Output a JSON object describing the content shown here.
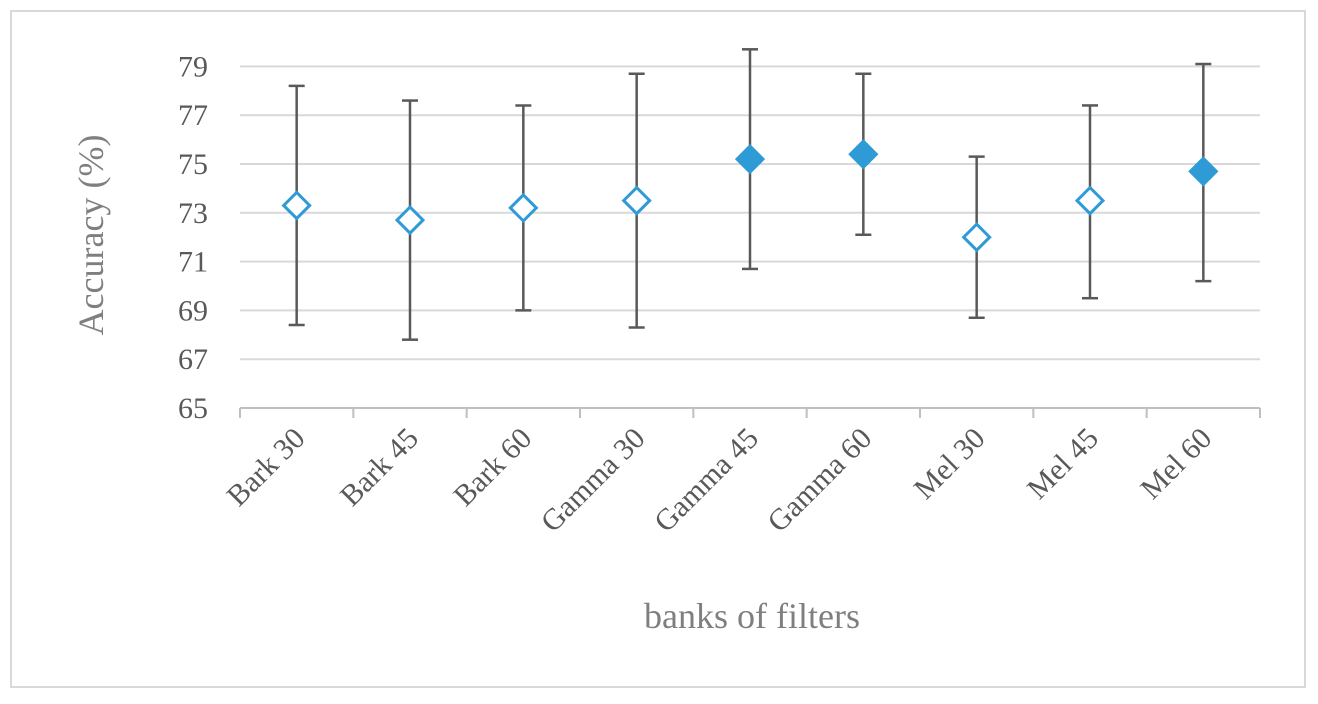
{
  "chart_data": {
    "type": "scatter",
    "title": "",
    "xlabel": "banks of filters",
    "ylabel": "Accuracy (%)",
    "ylim": [
      65,
      80
    ],
    "yticks": [
      65,
      67,
      69,
      71,
      73,
      75,
      77,
      79
    ],
    "grid": "horizontal",
    "categories": [
      "Bark 30",
      "Bark 45",
      "Bark 60",
      "Gamma 30",
      "Gamma 45",
      "Gamma 60",
      "Mel 30",
      "Mel 45",
      "Mel 60"
    ],
    "values": [
      73.3,
      72.7,
      73.2,
      73.5,
      75.2,
      75.4,
      72.0,
      73.5,
      74.7
    ],
    "error_low": [
      68.4,
      67.8,
      69.0,
      68.3,
      70.7,
      72.1,
      68.7,
      69.5,
      70.2
    ],
    "error_high": [
      78.2,
      77.6,
      77.4,
      78.7,
      79.7,
      78.7,
      75.3,
      77.4,
      79.1
    ],
    "filled": [
      false,
      false,
      false,
      false,
      true,
      true,
      false,
      false,
      true
    ],
    "colors": {
      "marker": "#2e9bd6",
      "errorbar": "#595959",
      "grid": "#d9d9d9",
      "axis": "#bfbfbf"
    }
  }
}
